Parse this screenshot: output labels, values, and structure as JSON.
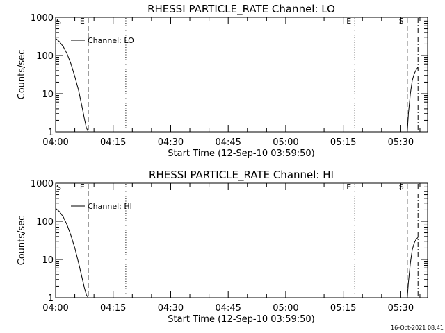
{
  "footer": "16-Oct-2021 08:41",
  "chart_data": [
    {
      "type": "line",
      "title": "RHESSI PARTICLE_RATE Channel: LO",
      "xlabel": "Start Time (12-Sep-10 03:59:50)",
      "ylabel": "Counts/sec",
      "yscale": "log",
      "ylim": [
        1,
        1000
      ],
      "xlim_minutes": [
        0,
        97
      ],
      "x_ticks": [
        "04:00",
        "04:15",
        "04:30",
        "04:45",
        "05:00",
        "05:15",
        "05:30"
      ],
      "y_ticks": [
        "1",
        "10",
        "100",
        "1000"
      ],
      "legend": "Channel: LO",
      "event_markers": [
        {
          "label": "E",
          "minute": 8.5,
          "style": "dashed"
        },
        {
          "label": "",
          "minute": 18.3,
          "style": "dotted"
        },
        {
          "label": "E",
          "minute": 78.0,
          "style": "dotted"
        },
        {
          "label": "S",
          "minute": 91.7,
          "style": "dashed"
        },
        {
          "label": "",
          "minute": 94.5,
          "style": "dashdot"
        }
      ],
      "series": [
        {
          "name": "Channel: LO",
          "x": [
            0,
            1,
            2,
            3,
            4,
            5,
            6,
            7,
            7.5,
            8,
            8.5
          ],
          "y": [
            280,
            230,
            170,
            110,
            60,
            28,
            12,
            4,
            2.2,
            1.3,
            1
          ]
        },
        {
          "name": "Channel: LO",
          "x": [
            91.7,
            92,
            92.5,
            93,
            93.5,
            94,
            94.5
          ],
          "y": [
            1,
            3,
            10,
            22,
            33,
            42,
            50
          ]
        }
      ]
    },
    {
      "type": "line",
      "title": "RHESSI PARTICLE_RATE Channel: HI",
      "xlabel": "Start Time (12-Sep-10 03:59:50)",
      "ylabel": "Counts/sec",
      "yscale": "log",
      "ylim": [
        1,
        1000
      ],
      "xlim_minutes": [
        0,
        97
      ],
      "x_ticks": [
        "04:00",
        "04:15",
        "04:30",
        "04:45",
        "05:00",
        "05:15",
        "05:30"
      ],
      "y_ticks": [
        "1",
        "10",
        "100",
        "1000"
      ],
      "legend": "Channel: HI",
      "event_markers": [
        {
          "label": "E",
          "minute": 8.5,
          "style": "dashed"
        },
        {
          "label": "",
          "minute": 18.3,
          "style": "dotted"
        },
        {
          "label": "E",
          "minute": 78.0,
          "style": "dotted"
        },
        {
          "label": "S",
          "minute": 91.7,
          "style": "dashed"
        },
        {
          "label": "",
          "minute": 94.5,
          "style": "dashdot"
        }
      ],
      "series": [
        {
          "name": "Channel: HI",
          "x": [
            0,
            1,
            2,
            3,
            4,
            5,
            6,
            7,
            7.5,
            8,
            8.5
          ],
          "y": [
            220,
            180,
            130,
            80,
            42,
            20,
            8,
            3,
            1.8,
            1.2,
            1
          ]
        },
        {
          "name": "Channel: HI",
          "x": [
            91.7,
            92,
            92.5,
            93,
            93.5,
            94,
            94.5
          ],
          "y": [
            1,
            2.5,
            8,
            18,
            27,
            34,
            38
          ]
        }
      ]
    }
  ]
}
